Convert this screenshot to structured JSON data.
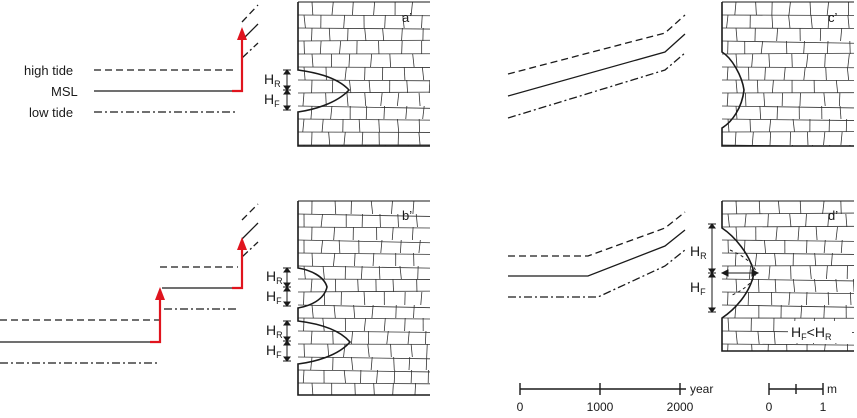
{
  "legend": {
    "high_tide": "high tide",
    "msl": "MSL",
    "low_tide": "low tide"
  },
  "panels": {
    "a": "a’",
    "b": "b’",
    "c": "c’",
    "d": "d’"
  },
  "notch_labels": {
    "h": "H",
    "r": "R",
    "f": "F"
  },
  "relation": {
    "left": "H",
    "left_sub": "F",
    "op": "<",
    "right": "H",
    "right_sub": "R"
  },
  "time_scale": {
    "ticks": [
      "0",
      "1000",
      "2000"
    ],
    "unit": "year"
  },
  "length_scale": {
    "ticks": [
      "0",
      "1"
    ],
    "unit": "m"
  },
  "colors": {
    "uplift_arrow": "#e0141e",
    "line": "#1a1a1a"
  }
}
